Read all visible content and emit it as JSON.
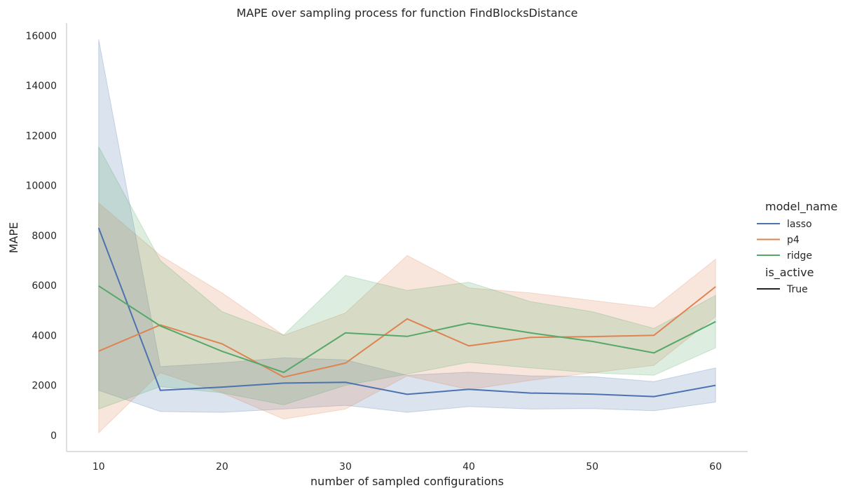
{
  "chart_data": {
    "type": "line",
    "title": "MAPE over sampling process for function FindBlocksDistance",
    "xlabel": "number of sampled configurations",
    "ylabel": "MAPE",
    "xlim": [
      7.4,
      62.6
    ],
    "ylim": [
      -650,
      16500
    ],
    "xticks": [
      10,
      20,
      30,
      40,
      50,
      60
    ],
    "yticks": [
      0,
      2000,
      4000,
      6000,
      8000,
      10000,
      12000,
      14000,
      16000
    ],
    "grid": false,
    "legend_position": "right",
    "x": [
      10,
      15,
      20,
      25,
      30,
      35,
      40,
      45,
      50,
      55,
      60
    ],
    "series": [
      {
        "name": "lasso",
        "color": "#4c72b0",
        "values": [
          8300,
          1800,
          1930,
          2090,
          2120,
          1640,
          1840,
          1690,
          1650,
          1550,
          2000
        ],
        "ci_low": [
          1800,
          950,
          920,
          1050,
          1200,
          920,
          1150,
          1050,
          1070,
          980,
          1330
        ],
        "ci_high": [
          15850,
          2750,
          2900,
          3100,
          3020,
          2400,
          2530,
          2380,
          2350,
          2150,
          2700
        ]
      },
      {
        "name": "p4",
        "color": "#dd8452",
        "values": [
          3370,
          4420,
          3660,
          2330,
          2890,
          4660,
          3580,
          3920,
          3950,
          4000,
          5950
        ],
        "ci_low": [
          100,
          2500,
          1700,
          650,
          1050,
          2380,
          1830,
          2200,
          2500,
          2800,
          4750
        ],
        "ci_high": [
          9300,
          7200,
          5700,
          4000,
          4900,
          7200,
          5900,
          5700,
          5400,
          5100,
          7050
        ]
      },
      {
        "name": "ridge",
        "color": "#55a868",
        "values": [
          5980,
          4380,
          3360,
          2520,
          4100,
          3960,
          4490,
          4100,
          3760,
          3300,
          4550
        ],
        "ci_low": [
          1050,
          1950,
          1700,
          1220,
          2000,
          2450,
          2920,
          2700,
          2500,
          2400,
          3500
        ],
        "ci_high": [
          11550,
          7000,
          4950,
          4020,
          6400,
          5800,
          6130,
          5350,
          4950,
          4280,
          5600
        ]
      }
    ],
    "legend": {
      "hue_title": "model_name",
      "style_title": "is_active",
      "style_entries": [
        {
          "name": "True",
          "color": "#262626"
        }
      ]
    }
  }
}
